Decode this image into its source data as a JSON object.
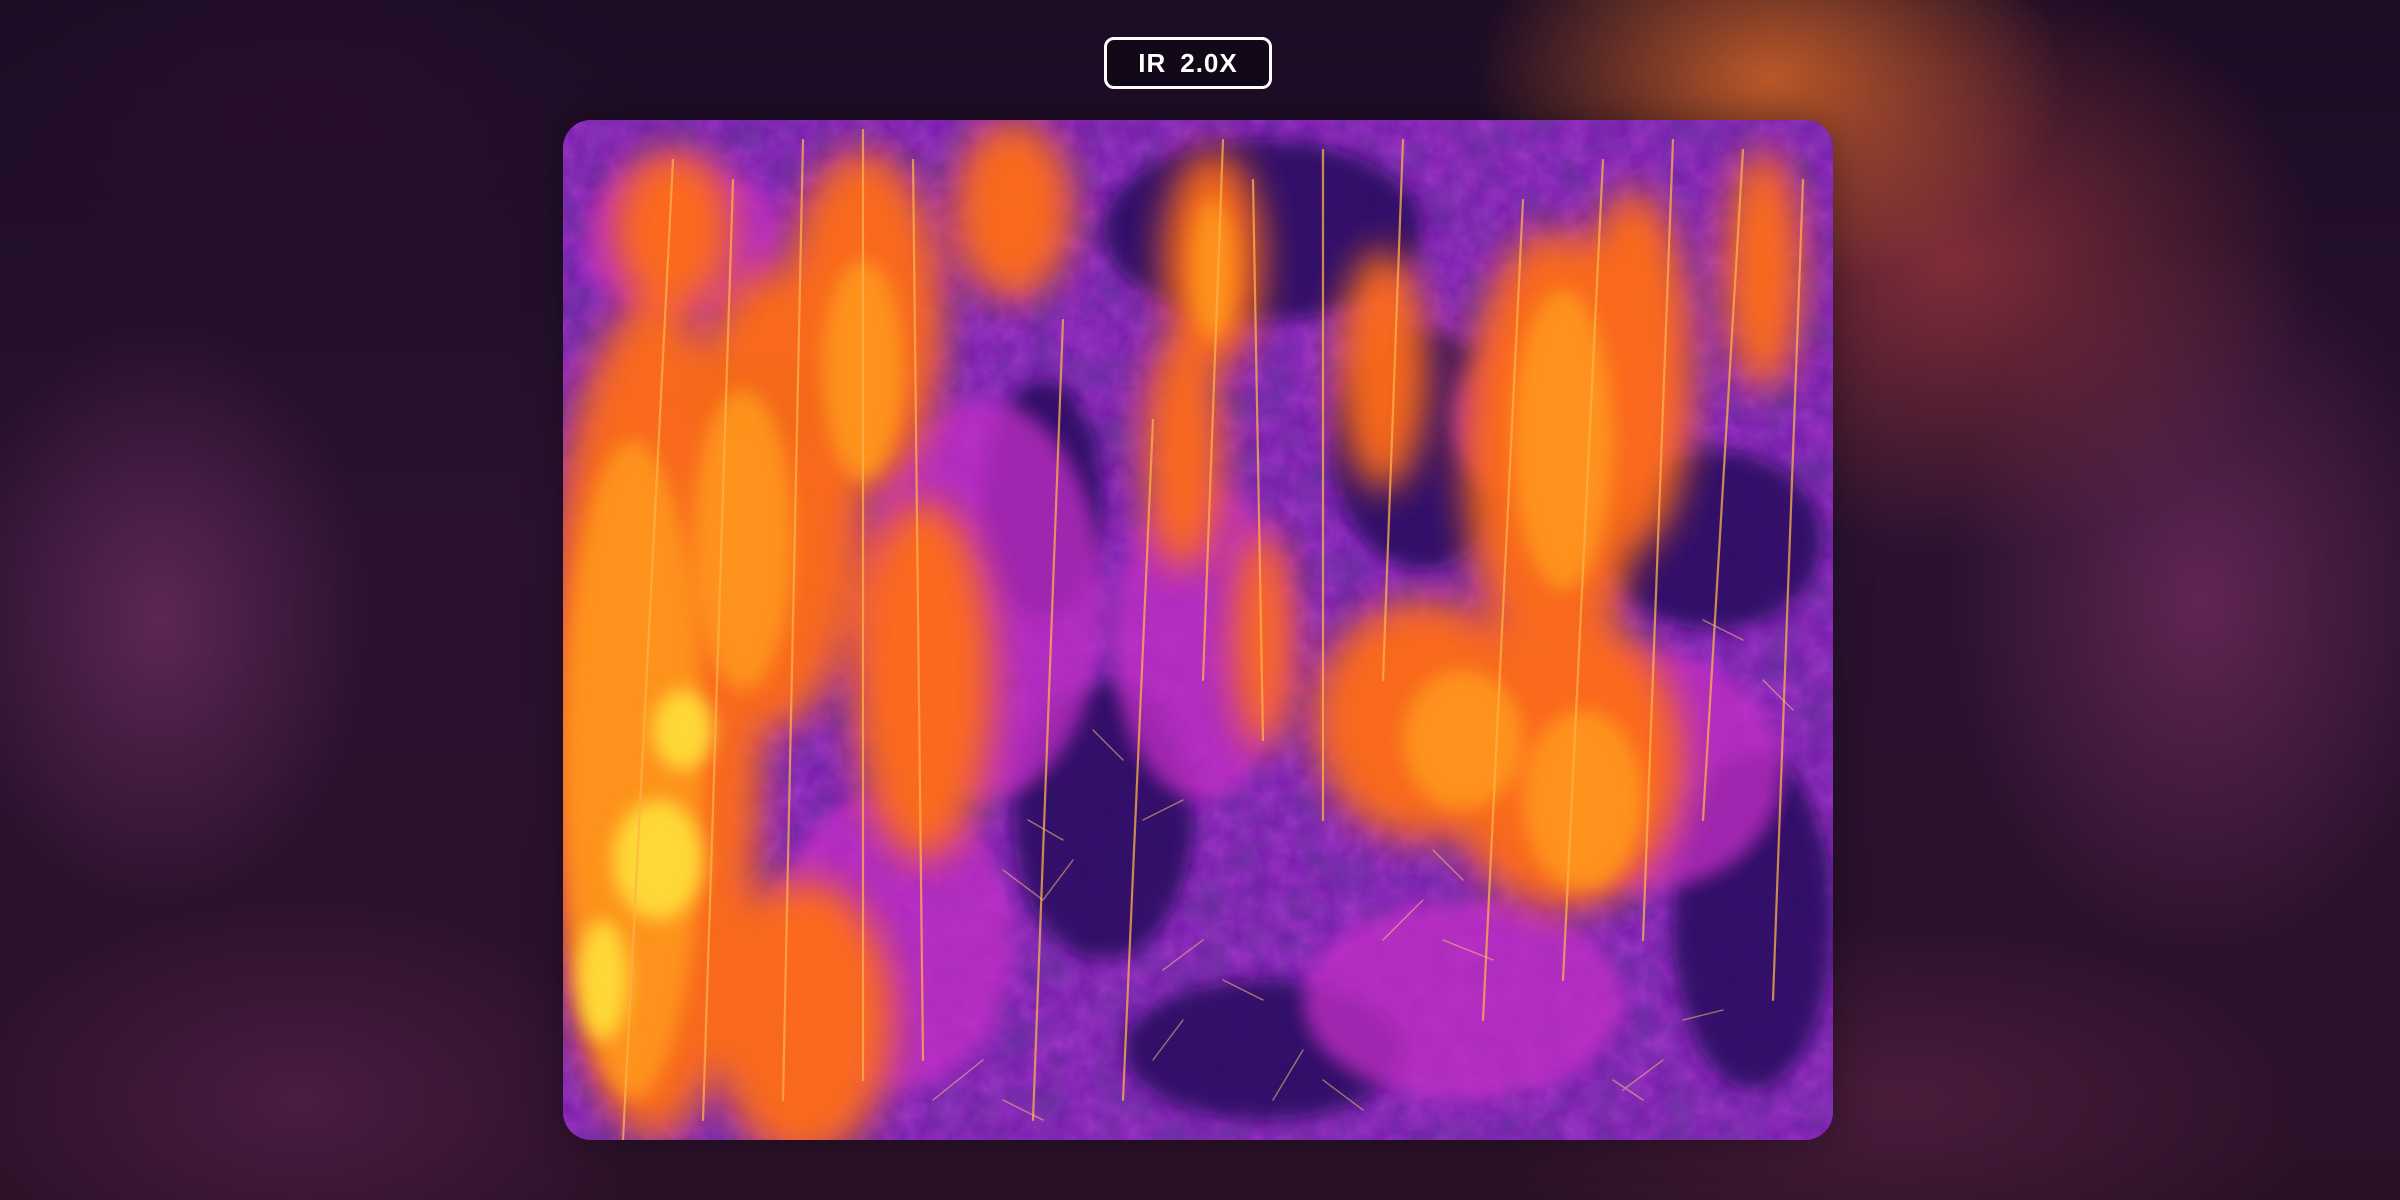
{
  "badge": {
    "mode": "IR",
    "zoom": "2.0X"
  },
  "colors": {
    "palette_cold": "#2a0a5c",
    "palette_cool": "#7b1fb0",
    "palette_mid": "#c22ec8",
    "palette_warm": "#ff6a1a",
    "palette_hot": "#ff9a1e",
    "palette_hottest": "#ffe23a",
    "badge_border": "#ffffff"
  },
  "feed": {
    "type": "thermal-camera-feed",
    "palette": "ironbow"
  }
}
